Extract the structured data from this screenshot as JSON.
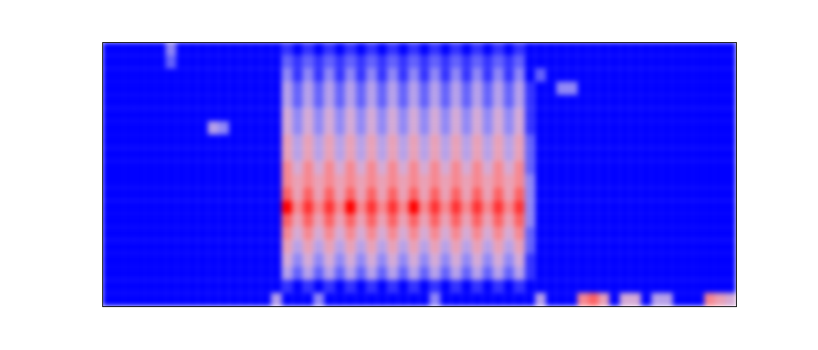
{
  "chart_data": {
    "type": "heatmap",
    "tick_labels": false,
    "zlim": [
      0,
      10
    ],
    "values": [
      [
        0,
        0,
        0,
        0,
        0,
        0,
        3,
        0,
        0,
        0,
        0,
        0,
        0,
        0,
        0,
        0,
        0,
        1,
        0,
        1,
        0,
        1,
        0,
        1,
        0,
        1,
        0,
        1,
        0,
        1,
        0,
        1,
        0,
        1,
        0,
        1,
        0,
        1,
        0,
        1,
        0,
        0,
        0,
        0,
        0,
        0,
        0,
        0,
        0,
        0,
        0,
        0,
        0,
        0,
        0,
        0,
        0,
        0,
        0,
        0
      ],
      [
        0,
        0,
        0,
        0,
        0,
        0,
        2,
        0,
        0,
        0,
        0,
        0,
        0,
        0,
        0,
        0,
        0,
        2,
        1,
        2,
        1,
        2,
        1,
        2,
        1,
        2,
        1,
        2,
        1,
        2,
        1,
        2,
        1,
        2,
        1,
        2,
        1,
        2,
        1,
        2,
        0,
        0,
        0,
        0,
        0,
        0,
        0,
        0,
        0,
        0,
        0,
        0,
        0,
        0,
        0,
        0,
        0,
        0,
        0,
        0
      ],
      [
        0,
        0,
        0,
        0,
        0,
        0,
        0,
        0,
        0,
        0,
        0,
        0,
        0,
        0,
        0,
        0,
        0,
        3,
        1,
        3,
        1,
        3,
        1,
        3,
        1,
        3,
        1,
        3,
        1,
        3,
        1,
        3,
        1,
        3,
        1,
        3,
        1,
        3,
        1,
        3,
        0,
        2,
        0,
        0,
        0,
        0,
        0,
        0,
        0,
        0,
        0,
        0,
        0,
        0,
        0,
        0,
        0,
        0,
        0,
        0
      ],
      [
        0,
        0,
        0,
        0,
        0,
        0,
        0,
        0,
        0,
        0,
        0,
        0,
        0,
        0,
        0,
        0,
        0,
        4,
        2,
        4,
        2,
        4,
        2,
        4,
        2,
        4,
        2,
        4,
        2,
        4,
        2,
        4,
        2,
        4,
        2,
        4,
        2,
        4,
        2,
        4,
        1,
        0,
        0,
        3,
        3,
        0,
        0,
        0,
        0,
        0,
        0,
        0,
        0,
        0,
        0,
        0,
        0,
        0,
        0,
        0
      ],
      [
        0,
        0,
        0,
        0,
        0,
        0,
        0,
        0,
        0,
        0,
        0,
        0,
        0,
        0,
        0,
        0,
        0,
        4,
        2,
        4,
        2,
        4,
        2,
        4,
        2,
        4,
        2,
        4,
        2,
        4,
        2,
        4,
        2,
        4,
        2,
        4,
        2,
        4,
        2,
        4,
        1,
        0,
        0,
        0,
        0,
        0,
        0,
        0,
        0,
        0,
        0,
        0,
        0,
        0,
        0,
        0,
        0,
        0,
        0,
        0
      ],
      [
        0,
        0,
        0,
        0,
        0,
        0,
        0,
        0,
        0,
        0,
        0,
        0,
        0,
        0,
        0,
        0,
        0,
        5,
        3,
        5,
        3,
        5,
        3,
        5,
        3,
        5,
        3,
        5,
        3,
        5,
        3,
        5,
        3,
        5,
        3,
        5,
        3,
        5,
        3,
        5,
        1,
        0,
        0,
        0,
        0,
        0,
        0,
        0,
        0,
        0,
        0,
        0,
        0,
        0,
        0,
        0,
        0,
        0,
        0,
        0
      ],
      [
        0,
        0,
        0,
        0,
        0,
        0,
        0,
        0,
        0,
        0,
        4,
        3,
        0,
        0,
        0,
        0,
        0,
        5,
        3,
        5,
        3,
        5,
        3,
        5,
        3,
        5,
        3,
        5,
        3,
        5,
        3,
        5,
        3,
        5,
        3,
        5,
        3,
        5,
        3,
        5,
        1,
        0,
        0,
        0,
        0,
        0,
        0,
        0,
        0,
        0,
        0,
        0,
        0,
        0,
        0,
        0,
        0,
        0,
        0,
        0
      ],
      [
        0,
        0,
        0,
        0,
        0,
        0,
        0,
        0,
        0,
        0,
        0,
        0,
        0,
        0,
        0,
        0,
        0,
        6,
        4,
        6,
        4,
        6,
        4,
        6,
        4,
        6,
        4,
        6,
        4,
        6,
        4,
        6,
        4,
        6,
        4,
        6,
        4,
        6,
        4,
        6,
        2,
        0,
        0,
        0,
        0,
        0,
        0,
        0,
        0,
        0,
        0,
        0,
        0,
        0,
        0,
        0,
        0,
        0,
        0,
        0
      ],
      [
        0,
        0,
        0,
        0,
        0,
        0,
        0,
        0,
        0,
        0,
        0,
        0,
        0,
        0,
        0,
        0,
        0,
        6,
        4,
        6,
        4,
        6,
        4,
        6,
        4,
        6,
        4,
        6,
        4,
        6,
        4,
        6,
        4,
        6,
        4,
        6,
        4,
        6,
        4,
        6,
        2,
        0,
        0,
        0,
        0,
        0,
        0,
        0,
        0,
        0,
        0,
        0,
        0,
        0,
        0,
        0,
        0,
        0,
        0,
        0
      ],
      [
        0,
        0,
        0,
        0,
        0,
        0,
        0,
        0,
        0,
        0,
        0,
        0,
        0,
        0,
        0,
        0,
        0,
        7,
        5,
        7,
        5,
        7,
        5,
        7,
        5,
        7,
        5,
        7,
        5,
        7,
        5,
        7,
        5,
        7,
        5,
        7,
        5,
        7,
        5,
        7,
        2,
        0,
        0,
        0,
        0,
        0,
        0,
        0,
        0,
        0,
        0,
        0,
        0,
        0,
        0,
        0,
        0,
        0,
        0,
        0
      ],
      [
        0,
        0,
        0,
        0,
        0,
        0,
        0,
        0,
        0,
        0,
        0,
        0,
        0,
        0,
        0,
        0,
        0,
        7,
        6,
        7,
        6,
        7,
        6,
        7,
        6,
        7,
        6,
        7,
        6,
        7,
        6,
        7,
        6,
        7,
        6,
        7,
        6,
        7,
        6,
        7,
        3,
        0,
        0,
        0,
        0,
        0,
        0,
        0,
        0,
        0,
        0,
        0,
        0,
        0,
        0,
        0,
        0,
        0,
        0,
        0
      ],
      [
        0,
        0,
        0,
        0,
        0,
        0,
        0,
        0,
        0,
        0,
        0,
        0,
        0,
        0,
        0,
        0,
        0,
        8,
        6,
        8,
        6,
        8,
        6,
        8,
        6,
        8,
        6,
        8,
        6,
        8,
        6,
        8,
        6,
        8,
        6,
        8,
        6,
        8,
        6,
        8,
        3,
        0,
        0,
        0,
        0,
        0,
        0,
        0,
        0,
        0,
        0,
        0,
        0,
        0,
        0,
        0,
        0,
        0,
        0,
        0
      ],
      [
        0,
        0,
        0,
        0,
        0,
        0,
        0,
        0,
        0,
        0,
        0,
        0,
        0,
        0,
        0,
        0,
        0,
        10,
        7,
        9,
        7,
        9,
        7,
        10,
        7,
        9,
        7,
        9,
        7,
        10,
        7,
        9,
        7,
        9,
        7,
        9,
        7,
        9,
        7,
        9,
        3,
        0,
        0,
        0,
        0,
        0,
        0,
        0,
        0,
        0,
        0,
        0,
        0,
        0,
        0,
        0,
        0,
        0,
        0,
        0
      ],
      [
        0,
        0,
        0,
        0,
        0,
        0,
        0,
        0,
        0,
        0,
        0,
        0,
        0,
        0,
        0,
        0,
        0,
        8,
        6,
        8,
        6,
        8,
        6,
        8,
        6,
        8,
        6,
        8,
        6,
        8,
        6,
        8,
        6,
        8,
        6,
        8,
        6,
        8,
        6,
        8,
        3,
        0,
        0,
        0,
        0,
        0,
        0,
        0,
        0,
        0,
        0,
        0,
        0,
        0,
        0,
        0,
        0,
        0,
        0,
        0
      ],
      [
        0,
        0,
        0,
        0,
        0,
        0,
        0,
        0,
        0,
        0,
        0,
        0,
        0,
        0,
        0,
        0,
        0,
        7,
        5,
        7,
        5,
        7,
        5,
        7,
        5,
        7,
        5,
        7,
        5,
        7,
        5,
        7,
        5,
        7,
        5,
        7,
        5,
        7,
        5,
        7,
        2,
        0,
        0,
        0,
        0,
        0,
        0,
        0,
        0,
        0,
        0,
        0,
        0,
        0,
        0,
        0,
        0,
        0,
        0,
        0
      ],
      [
        0,
        0,
        0,
        0,
        0,
        0,
        0,
        0,
        0,
        0,
        0,
        0,
        0,
        0,
        0,
        0,
        0,
        6,
        4,
        6,
        4,
        6,
        4,
        6,
        4,
        6,
        4,
        6,
        4,
        6,
        4,
        6,
        4,
        6,
        4,
        6,
        4,
        6,
        4,
        6,
        2,
        0,
        0,
        0,
        0,
        0,
        0,
        0,
        0,
        0,
        0,
        0,
        0,
        0,
        0,
        0,
        0,
        0,
        0,
        0
      ],
      [
        0,
        0,
        0,
        0,
        0,
        0,
        0,
        0,
        0,
        0,
        0,
        0,
        0,
        0,
        0,
        0,
        0,
        5,
        3,
        5,
        3,
        5,
        3,
        5,
        3,
        5,
        3,
        5,
        3,
        5,
        3,
        5,
        3,
        5,
        3,
        5,
        3,
        5,
        3,
        5,
        1,
        0,
        0,
        0,
        0,
        0,
        0,
        0,
        0,
        0,
        0,
        0,
        0,
        0,
        0,
        0,
        0,
        0,
        0,
        0
      ],
      [
        0,
        0,
        0,
        0,
        0,
        0,
        0,
        0,
        0,
        0,
        0,
        0,
        0,
        0,
        0,
        0,
        0,
        4,
        2,
        4,
        2,
        4,
        2,
        4,
        2,
        4,
        2,
        4,
        2,
        4,
        2,
        4,
        2,
        4,
        2,
        4,
        2,
        4,
        2,
        4,
        1,
        0,
        0,
        0,
        0,
        0,
        0,
        0,
        0,
        0,
        0,
        0,
        0,
        0,
        0,
        0,
        0,
        0,
        0,
        0
      ],
      [
        0,
        0,
        0,
        0,
        0,
        0,
        0,
        0,
        0,
        0,
        0,
        0,
        0,
        0,
        0,
        0,
        0,
        1,
        0,
        1,
        0,
        1,
        0,
        1,
        0,
        1,
        0,
        1,
        0,
        1,
        0,
        1,
        0,
        1,
        0,
        1,
        0,
        1,
        0,
        1,
        0,
        0,
        0,
        0,
        0,
        0,
        0,
        0,
        0,
        0,
        0,
        0,
        0,
        0,
        0,
        0,
        0,
        0,
        0,
        0
      ],
      [
        0,
        0,
        0,
        0,
        0,
        0,
        0,
        0,
        0,
        0,
        0,
        0,
        0,
        0,
        0,
        0,
        4,
        0,
        0,
        0,
        3,
        0,
        0,
        0,
        0,
        0,
        0,
        0,
        0,
        0,
        0,
        3,
        0,
        0,
        0,
        0,
        0,
        0,
        0,
        0,
        0,
        4,
        0,
        0,
        0,
        7,
        8,
        6,
        0,
        5,
        5,
        0,
        4,
        4,
        0,
        0,
        0,
        7,
        6,
        5
      ]
    ]
  }
}
